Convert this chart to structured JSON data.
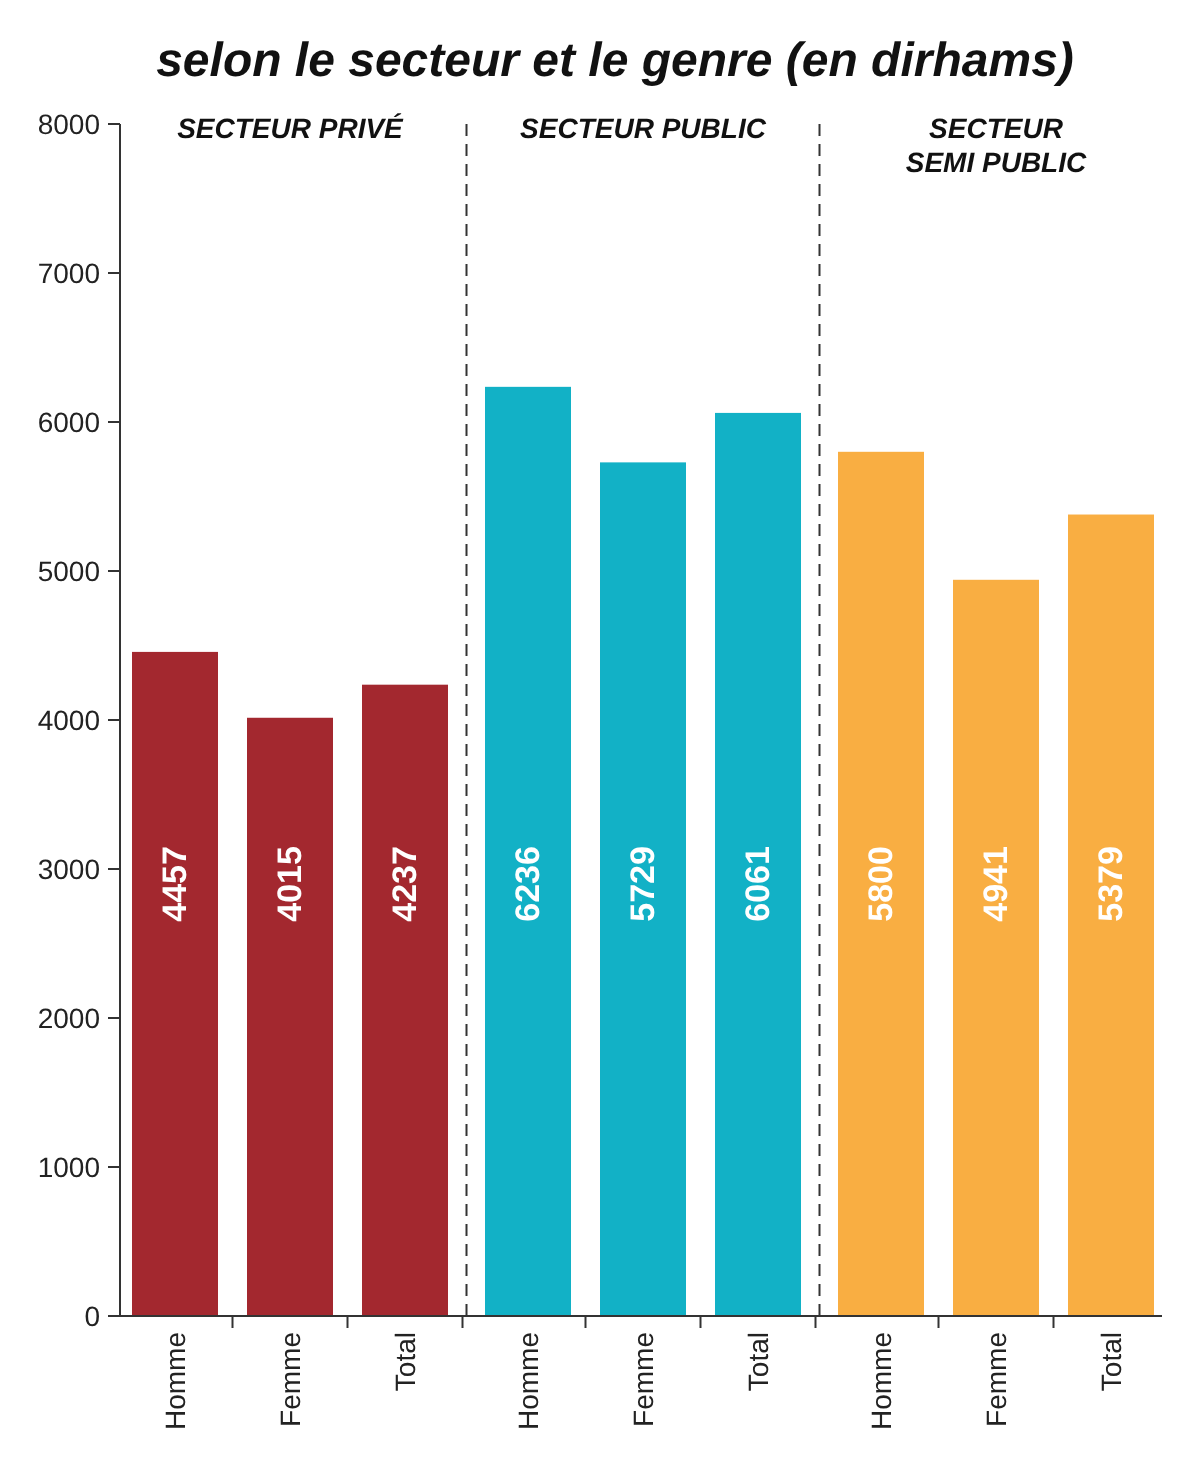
{
  "chart_data": {
    "type": "bar",
    "title": "selon le secteur et le genre (en dirhams)",
    "categories": [
      "Homme",
      "Femme",
      "Total",
      "Homme",
      "Femme",
      "Total",
      "Homme",
      "Femme",
      "Total"
    ],
    "values": [
      4457,
      4015,
      4237,
      6236,
      5729,
      6061,
      5800,
      4941,
      5379
    ],
    "colors": [
      "#a3282f",
      "#a3282f",
      "#a3282f",
      "#12b1c6",
      "#12b1c6",
      "#12b1c6",
      "#f9ae42",
      "#f9ae42",
      "#f9ae42"
    ],
    "ylim": [
      0,
      8000
    ],
    "yticks": [
      0,
      1000,
      2000,
      3000,
      4000,
      5000,
      6000,
      7000,
      8000
    ],
    "data_labels": true,
    "grid": false,
    "annotations": [
      "SECTEUR PRIVÉ",
      "SECTEUR PUBLIC",
      "SECTEUR SEMI PUBLIC"
    ]
  }
}
